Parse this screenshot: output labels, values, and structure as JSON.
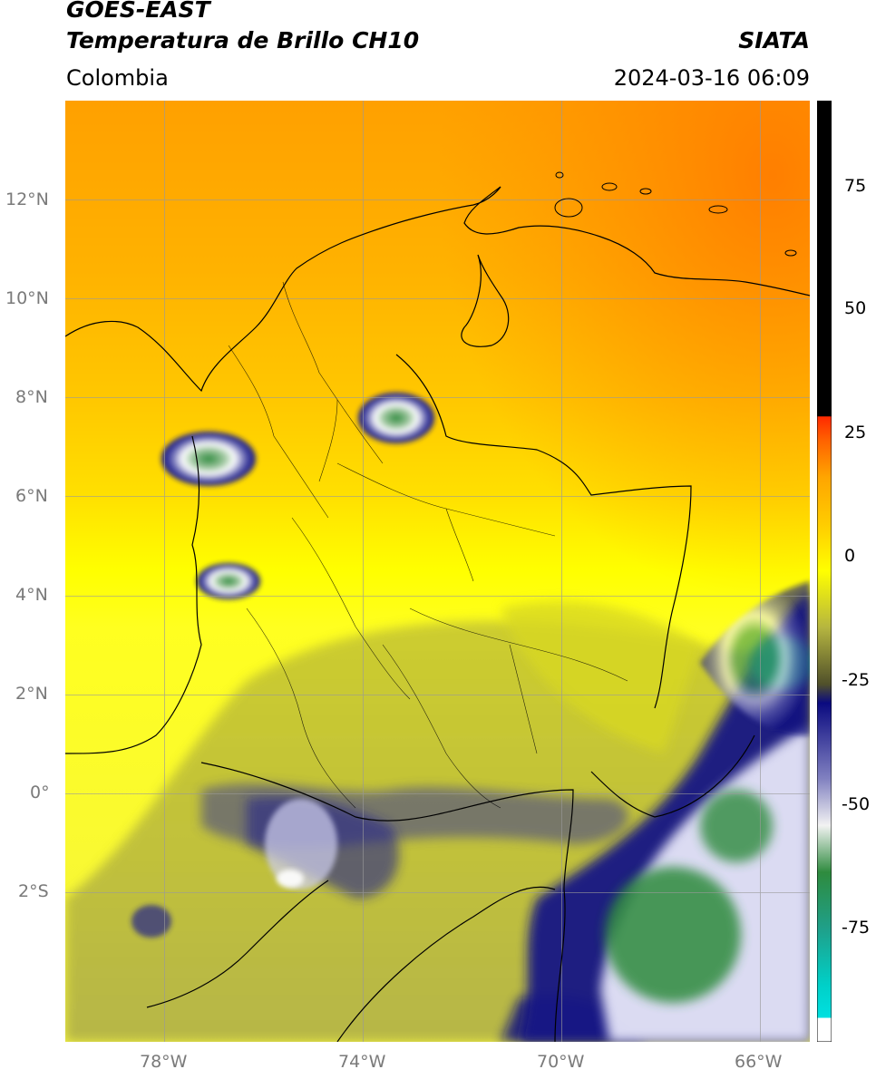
{
  "header": {
    "title_line1": "GOES-EAST",
    "title_line2": "Temperatura de Brillo CH10",
    "region": "Colombia",
    "source": "SIATA",
    "timestamp": "2024-03-16 06:09"
  },
  "map": {
    "lon_range": [
      -80,
      -65
    ],
    "lat_range": [
      -5,
      14
    ],
    "grid": true,
    "lon_ticks": [
      {
        "v": -78,
        "label": "78°W"
      },
      {
        "v": -74,
        "label": "74°W"
      },
      {
        "v": -70,
        "label": "70°W"
      },
      {
        "v": -66,
        "label": "66°W"
      }
    ],
    "lat_ticks": [
      {
        "v": 12,
        "label": "12°N"
      },
      {
        "v": 10,
        "label": "10°N"
      },
      {
        "v": 8,
        "label": "8°N"
      },
      {
        "v": 6,
        "label": "6°N"
      },
      {
        "v": 4,
        "label": "4°N"
      },
      {
        "v": 2,
        "label": "2°N"
      },
      {
        "v": 0,
        "label": "0°"
      },
      {
        "v": -2,
        "label": "2°S"
      }
    ]
  },
  "colorbar": {
    "range": [
      -95,
      90
    ],
    "ticks": [
      {
        "v": 75,
        "label": "75"
      },
      {
        "v": 50,
        "label": "50"
      },
      {
        "v": 25,
        "label": "25"
      },
      {
        "v": 0,
        "label": "0"
      },
      {
        "v": -25,
        "label": "-25"
      },
      {
        "v": -50,
        "label": "-50"
      },
      {
        "v": -75,
        "label": "-75"
      }
    ],
    "colors": [
      "#ffffff",
      "#00e0e0",
      "#1fa08a",
      "#2e8b3e",
      "#f2f2f2",
      "#5a5ab0",
      "#0a0a80",
      "#b5b540",
      "#ffff00",
      "#ffa500",
      "#ff2a00",
      "#000000"
    ]
  }
}
